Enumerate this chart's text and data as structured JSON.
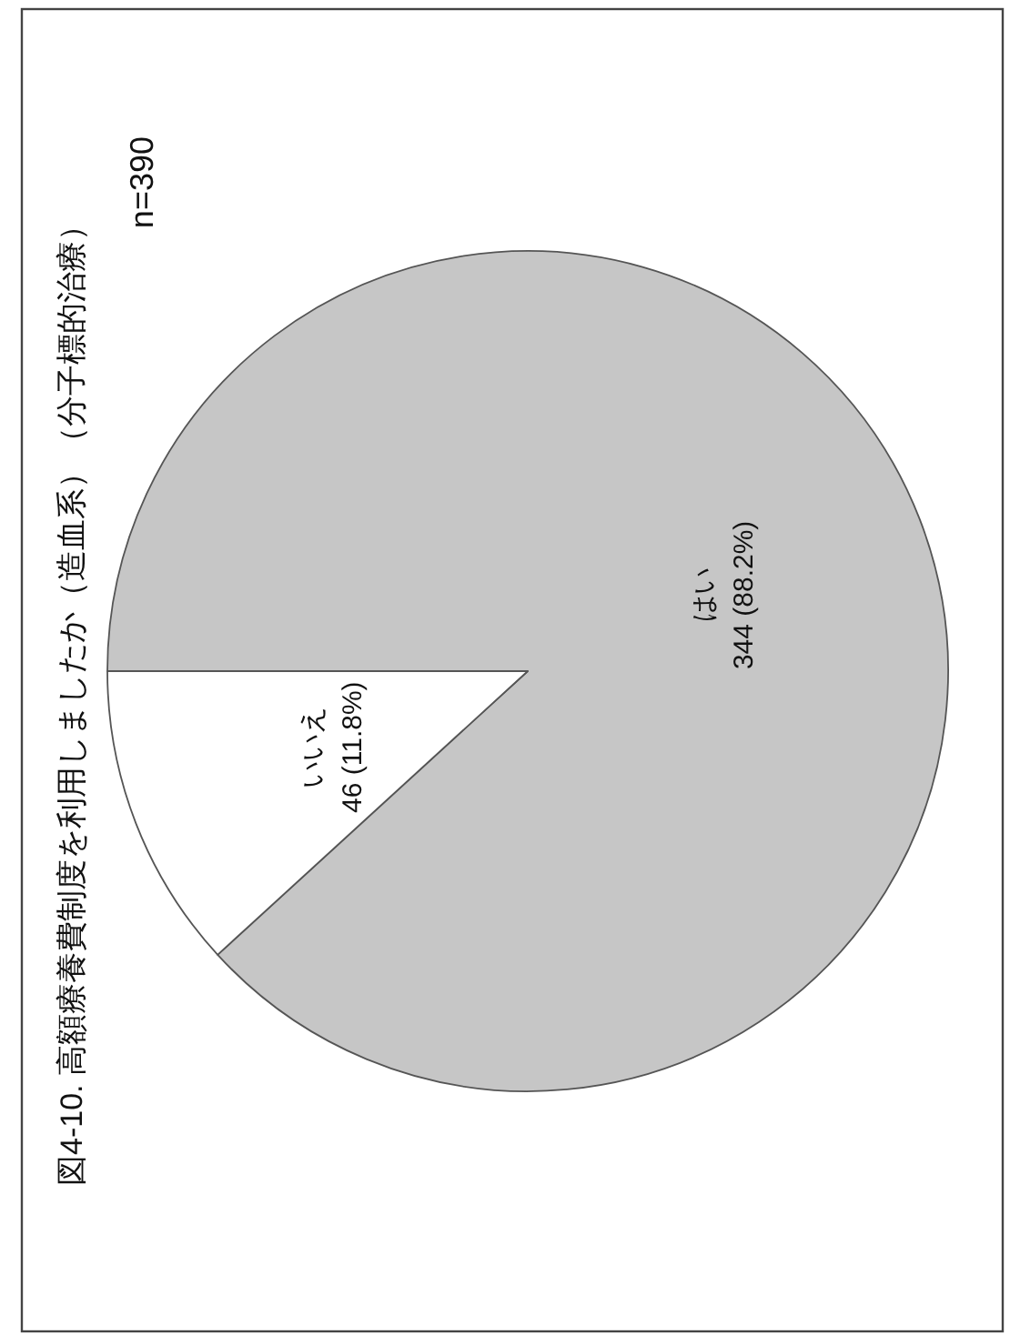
{
  "chart_data": {
    "type": "pie",
    "title": "図4-10. 高額療養費制度を利用しましたか（造血系）（分子標的治療）",
    "categories": [
      "はい",
      "いいえ"
    ],
    "values": [
      344,
      46
    ],
    "value_labels": [
      "344 (88.2%)",
      "46 (11.8%)"
    ],
    "colors": [
      "#c6c6c6",
      "#ffffff"
    ],
    "annotations": [
      "n=390"
    ]
  }
}
